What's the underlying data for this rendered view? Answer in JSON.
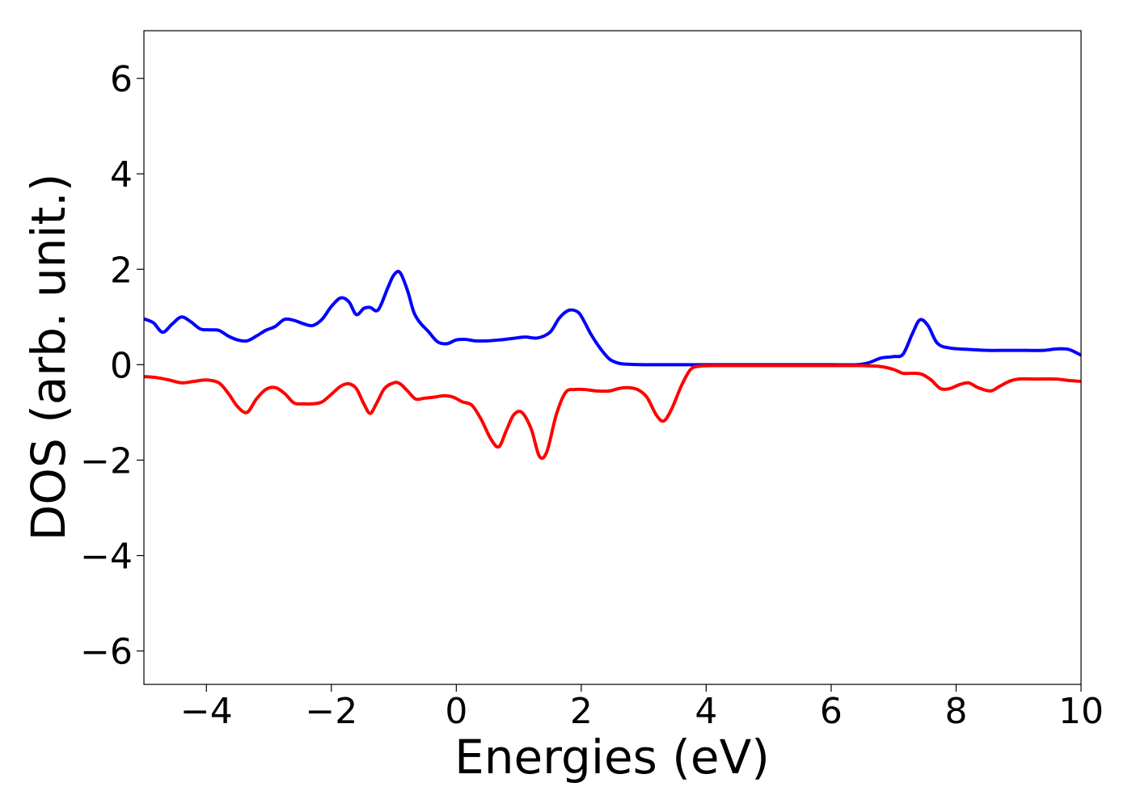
{
  "chart_data": {
    "type": "line",
    "title": "",
    "xlabel": "Energies (eV)",
    "ylabel": "DOS (arb. unit.)",
    "xlim": [
      -5,
      10
    ],
    "ylim": [
      -6.7,
      7.0
    ],
    "x_ticks": [
      -4,
      -2,
      0,
      2,
      4,
      6,
      8,
      10
    ],
    "x_tick_labels": [
      "−4",
      "−2",
      "0",
      "2",
      "4",
      "6",
      "8",
      "10"
    ],
    "y_ticks": [
      -6,
      -4,
      -2,
      0,
      2,
      4,
      6
    ],
    "y_tick_labels": [
      "−6",
      "−4",
      "−2",
      "0",
      "2",
      "4",
      "6"
    ],
    "grid": false,
    "legend": "none",
    "series": [
      {
        "color": "#0000ff",
        "x": [
          -5.0,
          -4.85,
          -4.7,
          -4.55,
          -4.4,
          -4.25,
          -4.1,
          -3.95,
          -3.8,
          -3.65,
          -3.5,
          -3.35,
          -3.2,
          -3.05,
          -2.9,
          -2.75,
          -2.6,
          -2.45,
          -2.3,
          -2.15,
          -2.0,
          -1.85,
          -1.72,
          -1.6,
          -1.48,
          -1.38,
          -1.25,
          -1.1,
          -1.0,
          -0.9,
          -0.78,
          -0.68,
          -0.58,
          -0.45,
          -0.3,
          -0.15,
          0.0,
          0.15,
          0.3,
          0.5,
          0.7,
          0.9,
          1.1,
          1.3,
          1.5,
          1.65,
          1.8,
          1.95,
          2.05,
          2.15,
          2.3,
          2.45,
          2.6,
          2.75,
          3.0,
          3.5,
          4.0,
          5.0,
          6.0,
          6.4,
          6.6,
          6.8,
          7.0,
          7.15,
          7.3,
          7.42,
          7.55,
          7.7,
          7.9,
          8.2,
          8.5,
          8.8,
          9.1,
          9.4,
          9.6,
          9.8,
          10.0
        ],
        "y": [
          0.96,
          0.88,
          0.68,
          0.85,
          1.0,
          0.9,
          0.75,
          0.73,
          0.72,
          0.6,
          0.52,
          0.5,
          0.6,
          0.72,
          0.8,
          0.95,
          0.93,
          0.86,
          0.82,
          0.95,
          1.22,
          1.4,
          1.32,
          1.05,
          1.18,
          1.2,
          1.15,
          1.6,
          1.88,
          1.93,
          1.55,
          1.1,
          0.88,
          0.7,
          0.48,
          0.44,
          0.52,
          0.53,
          0.5,
          0.5,
          0.52,
          0.55,
          0.58,
          0.56,
          0.68,
          0.98,
          1.14,
          1.1,
          0.9,
          0.65,
          0.35,
          0.12,
          0.03,
          0.01,
          0.0,
          0.0,
          0.0,
          0.0,
          0.0,
          0.0,
          0.04,
          0.14,
          0.17,
          0.22,
          0.65,
          0.94,
          0.82,
          0.45,
          0.35,
          0.32,
          0.3,
          0.3,
          0.3,
          0.3,
          0.33,
          0.32,
          0.2
        ]
      },
      {
        "color": "#ff0000",
        "x": [
          -5.0,
          -4.8,
          -4.6,
          -4.4,
          -4.2,
          -4.0,
          -3.8,
          -3.65,
          -3.5,
          -3.35,
          -3.2,
          -3.05,
          -2.9,
          -2.75,
          -2.6,
          -2.45,
          -2.3,
          -2.15,
          -2.0,
          -1.85,
          -1.72,
          -1.6,
          -1.48,
          -1.38,
          -1.28,
          -1.15,
          -1.0,
          -0.9,
          -0.78,
          -0.65,
          -0.5,
          -0.35,
          -0.2,
          -0.05,
          0.1,
          0.25,
          0.4,
          0.55,
          0.68,
          0.8,
          0.92,
          1.05,
          1.2,
          1.33,
          1.45,
          1.6,
          1.75,
          1.9,
          2.05,
          2.25,
          2.45,
          2.6,
          2.75,
          2.9,
          3.05,
          3.2,
          3.32,
          3.45,
          3.6,
          3.75,
          3.9,
          4.1,
          4.5,
          5.0,
          6.0,
          6.5,
          6.8,
          7.0,
          7.15,
          7.3,
          7.45,
          7.6,
          7.75,
          7.9,
          8.05,
          8.2,
          8.35,
          8.55,
          8.7,
          8.85,
          9.0,
          9.3,
          9.6,
          9.8,
          10.0
        ],
        "y": [
          -0.25,
          -0.27,
          -0.32,
          -0.38,
          -0.35,
          -0.32,
          -0.38,
          -0.6,
          -0.88,
          -1.0,
          -0.72,
          -0.52,
          -0.48,
          -0.6,
          -0.8,
          -0.82,
          -0.82,
          -0.78,
          -0.62,
          -0.45,
          -0.4,
          -0.5,
          -0.82,
          -1.02,
          -0.82,
          -0.5,
          -0.38,
          -0.4,
          -0.55,
          -0.72,
          -0.7,
          -0.68,
          -0.65,
          -0.68,
          -0.78,
          -0.85,
          -1.15,
          -1.55,
          -1.72,
          -1.38,
          -1.05,
          -1.0,
          -1.35,
          -1.92,
          -1.82,
          -1.05,
          -0.58,
          -0.52,
          -0.52,
          -0.55,
          -0.55,
          -0.5,
          -0.48,
          -0.52,
          -0.68,
          -1.05,
          -1.18,
          -0.92,
          -0.45,
          -0.1,
          -0.03,
          -0.02,
          -0.02,
          -0.02,
          -0.02,
          -0.02,
          -0.04,
          -0.1,
          -0.18,
          -0.18,
          -0.2,
          -0.32,
          -0.5,
          -0.5,
          -0.42,
          -0.38,
          -0.48,
          -0.55,
          -0.45,
          -0.35,
          -0.3,
          -0.3,
          -0.3,
          -0.33,
          -0.35
        ]
      }
    ]
  }
}
